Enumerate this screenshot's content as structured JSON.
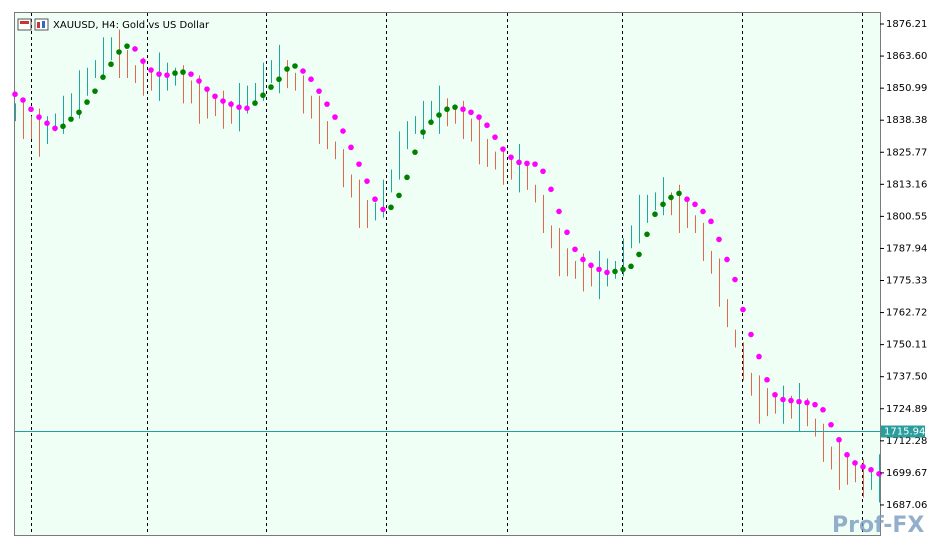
{
  "chart_data": {
    "type": "price-bars",
    "title": "XAUUSD, H4:  Gold vs US Dollar",
    "watermark": "Prof-FX",
    "categories": [
      null,
      null,
      null,
      null,
      null,
      null,
      null,
      null,
      null,
      null,
      null,
      null,
      null,
      null,
      null,
      null,
      null,
      null,
      null,
      null,
      null,
      null,
      null,
      null,
      null,
      null,
      null,
      null,
      null,
      null,
      null,
      null,
      null,
      null,
      null,
      null,
      null,
      null,
      null,
      null,
      null,
      null,
      null,
      null,
      null,
      null,
      null,
      null,
      null,
      null,
      null,
      null,
      null,
      null,
      null,
      null,
      null,
      null,
      null,
      null,
      null,
      null,
      null,
      null,
      null,
      null,
      null,
      null,
      null,
      null,
      null,
      null,
      null,
      null,
      null,
      null,
      null,
      null,
      null,
      null,
      null,
      null,
      null,
      null,
      null,
      null,
      null,
      null,
      null,
      null,
      null,
      null,
      null,
      null,
      null,
      null,
      null,
      null,
      null,
      null,
      null,
      null,
      null,
      null,
      null,
      null,
      null,
      null,
      null
    ],
    "ylim": [
      1675.24,
      1880.54
    ],
    "yticks": [
      1876.21,
      {
        "value": 1863.6,
        "label": "1863.60"
      },
      1850.99,
      1838.38,
      1825.77,
      1813.16,
      1800.55,
      1787.94,
      1775.33,
      1762.72,
      1750.11,
      {
        "value": 1737.5,
        "label": "1737.50"
      },
      1724.89,
      1712.28,
      1699.67,
      1687.06
    ],
    "grid": false,
    "current_price": {
      "value": 1715.94,
      "label": "1715.94"
    },
    "current_price_color": "#2a9d9d",
    "series": [
      {
        "type": "hilo",
        "up_color": "#20a8a0",
        "down_color": "#e06850",
        "high": [
          1845,
          1846,
          1840,
          1843,
          1840,
          1841,
          1848,
          1849,
          1858,
          1859,
          1862,
          1871,
          1871,
          1874,
          1866,
          1860,
          1863,
          1859,
          1865,
          1861,
          1859,
          1860,
          1854,
          1856,
          1850,
          1847,
          1850,
          1846,
          1853,
          1852,
          1853,
          1861,
          1862,
          1868,
          1862,
          1857,
          1856,
          1848,
          1848,
          1838,
          1830,
          1827,
          1817,
          1815,
          1807,
          1806,
          1815,
          1819,
          1834,
          1838,
          1840,
          1846,
          1846,
          1852,
          1847,
          1844,
          1846,
          1839,
          1840,
          1831,
          1826,
          1828,
          1824,
          1829,
          1822,
          1813,
          1809,
          1797,
          1796,
          1788,
          1783,
          1786,
          1782,
          1787,
          1784,
          1783,
          1792,
          1797,
          1809,
          1809,
          1810,
          1816,
          1810,
          1813,
          1807,
          1801,
          1798,
          1787,
          1784,
          1768,
          1756,
          1751,
          1739,
          1738,
          1733,
          1730,
          1734,
          1730,
          1735,
          1729,
          1721,
          1719,
          1710,
          1712,
          1706,
          1703,
          1705,
          1702,
          1707
        ],
        "low": [
          1838,
          1831,
          1831,
          1824,
          1829,
          1834,
          1833,
          1840,
          1839,
          1848,
          1855,
          1856,
          1862,
          1855,
          1855,
          1853,
          1848,
          1850,
          1846,
          1850,
          1852,
          1845,
          1845,
          1837,
          1839,
          1840,
          1835,
          1837,
          1834,
          1841,
          1846,
          1846,
          1853,
          1849,
          1851,
          1850,
          1841,
          1839,
          1829,
          1827,
          1823,
          1812,
          1808,
          1796,
          1796,
          1799,
          1800,
          1810,
          1815,
          1827,
          1833,
          1831,
          1837,
          1833,
          1836,
          1837,
          1831,
          1830,
          1821,
          1820,
          1819,
          1813,
          1815,
          1810,
          1811,
          1806,
          1794,
          1788,
          1777,
          1777,
          1776,
          1771,
          1773,
          1768,
          1773,
          1776,
          1777,
          1788,
          1790,
          1798,
          1803,
          1801,
          1801,
          1794,
          1796,
          1794,
          1783,
          1778,
          1765,
          1757,
          1749,
          1736,
          1730,
          1719,
          1722,
          1723,
          1719,
          1721,
          1716,
          1718,
          1714,
          1704,
          1701,
          1693,
          1695,
          1696,
          1690,
          1693,
          1688
        ]
      },
      {
        "type": "dots",
        "color": "#ff00ff",
        "up_color": "#008000",
        "values": [
          1848.6,
          1846.3,
          1842.7,
          1839.6,
          1837.2,
          1835.2,
          1836.0,
          1838.8,
          1841.5,
          1845.5,
          1849.8,
          1855.3,
          1860.4,
          1865.2,
          1867.5,
          1866.4,
          1861.6,
          1858.1,
          1856.5,
          1856.1,
          1856.9,
          1857.3,
          1856.5,
          1853.8,
          1850.6,
          1847.8,
          1845.9,
          1844.7,
          1843.5,
          1843.1,
          1845.1,
          1848.2,
          1851.4,
          1854.5,
          1858.5,
          1859.7,
          1857.7,
          1854.5,
          1849.8,
          1844.7,
          1839.6,
          1834.1,
          1827.7,
          1821.1,
          1814.4,
          1807.3,
          1803.3,
          1804.1,
          1808.8,
          1815.9,
          1825.8,
          1833.7,
          1837.6,
          1840.4,
          1842.7,
          1843.5,
          1842.7,
          1841.5,
          1839.6,
          1836.4,
          1831.7,
          1827.0,
          1823.8,
          1821.8,
          1821.4,
          1821.1,
          1818.3,
          1811.2,
          1802.5,
          1794.3,
          1787.6,
          1783.6,
          1781.3,
          1779.7,
          1778.5,
          1778.9,
          1779.7,
          1780.9,
          1785.6,
          1793.5,
          1801.4,
          1805.3,
          1808.0,
          1809.6,
          1807.3,
          1805.3,
          1802.5,
          1798.6,
          1791.5,
          1783.6,
          1775.7,
          1763.9,
          1754.1,
          1745.4,
          1736.3,
          1730.4,
          1728.5,
          1728.1,
          1727.7,
          1727.3,
          1726.5,
          1724.5,
          1718.6,
          1712.7,
          1706.8,
          1703.6,
          1702.1,
          1700.9,
          1699.3
        ]
      }
    ]
  }
}
